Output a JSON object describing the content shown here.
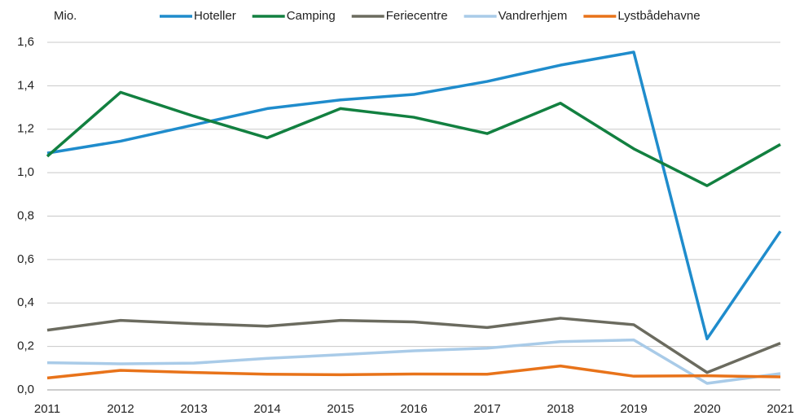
{
  "chart_data": {
    "type": "line",
    "y_label": "Mio.",
    "categories": [
      "2011",
      "2012",
      "2013",
      "2014",
      "2015",
      "2016",
      "2017",
      "2018",
      "2019",
      "2020",
      "2021"
    ],
    "series": [
      {
        "name": "Hoteller",
        "color": "#1f8ccc",
        "values": [
          1.09,
          1.145,
          1.22,
          1.295,
          1.335,
          1.36,
          1.42,
          1.495,
          1.555,
          0.235,
          0.73
        ]
      },
      {
        "name": "Camping",
        "color": "#128040",
        "values": [
          1.075,
          1.37,
          1.26,
          1.16,
          1.295,
          1.255,
          1.18,
          1.32,
          1.11,
          0.94,
          1.13
        ]
      },
      {
        "name": "Feriecentre",
        "color": "#6b6b5f",
        "values": [
          0.275,
          0.32,
          0.305,
          0.293,
          0.32,
          0.313,
          0.287,
          0.33,
          0.3,
          0.08,
          0.215
        ]
      },
      {
        "name": "Vandrerhjem",
        "color": "#a9cbe8",
        "values": [
          0.125,
          0.12,
          0.123,
          0.145,
          0.162,
          0.18,
          0.192,
          0.222,
          0.23,
          0.03,
          0.075
        ]
      },
      {
        "name": "Lystbådehavne",
        "color": "#e8731a",
        "values": [
          0.055,
          0.09,
          0.08,
          0.072,
          0.07,
          0.073,
          0.072,
          0.11,
          0.063,
          0.065,
          0.06
        ]
      }
    ],
    "ylim": [
      0,
      1.6
    ],
    "yticks": [
      {
        "value": 0,
        "label": "0,0"
      },
      {
        "value": 0.2,
        "label": "0,2"
      },
      {
        "value": 0.4,
        "label": "0,4"
      },
      {
        "value": 0.6,
        "label": "0,6"
      },
      {
        "value": 0.8,
        "label": "0,8"
      },
      {
        "value": 1.0,
        "label": "1,0"
      },
      {
        "value": 1.2,
        "label": "1,2"
      },
      {
        "value": 1.4,
        "label": "1,4"
      },
      {
        "value": 1.6,
        "label": "1,6"
      }
    ],
    "grid": true,
    "legend": "top"
  }
}
